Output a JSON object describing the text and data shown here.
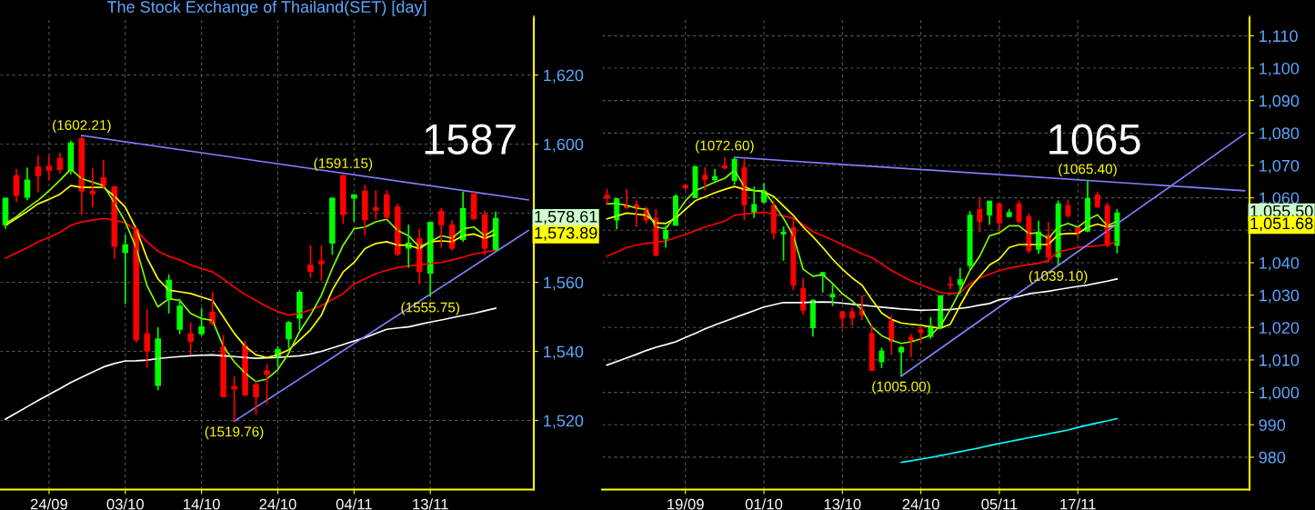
{
  "chart_data": [
    {
      "type": "candlestick",
      "title": "The Stock Exchange of Thailand(SET) [day]",
      "categories": [
        null,
        null,
        null,
        null,
        "24/09",
        null,
        null,
        null,
        null,
        null,
        null,
        "03/10",
        null,
        null,
        null,
        null,
        null,
        null,
        "14/10",
        null,
        null,
        null,
        null,
        null,
        null,
        "24/10",
        null,
        null,
        null,
        null,
        null,
        null,
        "04/11",
        null,
        null,
        null,
        null,
        null,
        null,
        "13/11",
        null,
        null,
        null,
        null,
        null,
        null,
        null,
        null,
        null
      ],
      "ohlc": [
        [
          1576.5,
          1584.5,
          1575.5,
          1584.5
        ],
        [
          1591,
          1592.75,
          1583.25,
          1585
        ],
        [
          1584.5,
          1593.25,
          1583.75,
          1589.75
        ],
        [
          1593.5,
          1596.75,
          1586,
          1590.75
        ],
        [
          1593.75,
          1596.5,
          1589.5,
          1592.25
        ],
        [
          1596,
          1597.5,
          1591.5,
          1592.5
        ],
        [
          1592.25,
          1601,
          1591.25,
          1600.5
        ],
        [
          1601.75,
          1602.21,
          1579.5,
          1586.25
        ],
        [
          1586.5,
          1593,
          1581.75,
          1585.5
        ],
        [
          1590.5,
          1595.5,
          1587,
          1588
        ],
        [
          1587.75,
          1588,
          1566.75,
          1570.25
        ],
        [
          1568.5,
          1573.75,
          1553.75,
          1571
        ],
        [
          1575.5,
          1576.25,
          1542.5,
          1543.25
        ],
        [
          1545.25,
          1552.25,
          1535.25,
          1540
        ],
        [
          1530,
          1547,
          1528.75,
          1543.75
        ],
        [
          1555.25,
          1562.25,
          1551,
          1560.75
        ],
        [
          1546.25,
          1555.25,
          1545,
          1553.25
        ],
        [
          1545.25,
          1548.5,
          1539,
          1542.75
        ],
        [
          1545,
          1552.5,
          1544.5,
          1547.25
        ],
        [
          1551.5,
          1557.25,
          1547.5,
          1548
        ],
        [
          1541.5,
          1544.75,
          1526.75,
          1526.75
        ],
        [
          1530,
          1532.75,
          1519.76,
          1529
        ],
        [
          1541.75,
          1543,
          1527,
          1527.25
        ],
        [
          1530.5,
          1531.5,
          1521.75,
          1526.75
        ],
        [
          1534.5,
          1536.25,
          1524.75,
          1533.25
        ],
        [
          1538.25,
          1541.5,
          1535.5,
          1540.75
        ],
        [
          1543.5,
          1548.75,
          1541,
          1548.5
        ],
        [
          1549.5,
          1557.75,
          1546.25,
          1557.25
        ],
        [
          1565.1,
          1570.75,
          1561.25,
          1563
        ],
        [
          1566.25,
          1570.75,
          1560.5,
          1565.25
        ],
        [
          1571.25,
          1584.5,
          1568,
          1584.5
        ],
        [
          1591,
          1591.15,
          1577,
          1579.5
        ],
        [
          1584.25,
          1585.5,
          1577.5,
          1585.5
        ],
        [
          1586.5,
          1588.25,
          1573.5,
          1578
        ],
        [
          1581.75,
          1586.75,
          1578.25,
          1580.75
        ],
        [
          1585.5,
          1586.75,
          1578.25,
          1578.75
        ],
        [
          1582,
          1582.75,
          1567.5,
          1568
        ],
        [
          1569.75,
          1576.75,
          1564.25,
          1571.5
        ],
        [
          1572.75,
          1575.5,
          1559.5,
          1563
        ],
        [
          1562.5,
          1577.5,
          1555.75,
          1577.5
        ],
        [
          1580.75,
          1581.5,
          1570,
          1576.5
        ],
        [
          1576.75,
          1578,
          1569.25,
          1569.75
        ],
        [
          1572.25,
          1586.25,
          1571.75,
          1581.5
        ],
        [
          1585.75,
          1586.25,
          1578,
          1578.25
        ],
        [
          1579.75,
          1580.75,
          1567.75,
          1569.75
        ],
        [
          1569.25,
          1580.5,
          1569.25,
          1578.61
        ],
        null,
        null,
        null
      ],
      "series": [
        {
          "type": "line",
          "color": "#ffffff",
          "values": [
            1520.4,
            1522.2,
            1524,
            1525.8,
            1527.5,
            1529.2,
            1531,
            1532.5,
            1534,
            1535.5,
            1536.5,
            1537.25,
            1537.3,
            1537.5,
            1537.9,
            1538.25,
            1538.5,
            1538.75,
            1538.9,
            1539,
            1538.75,
            1538.5,
            1538.25,
            1538,
            1538.1,
            1538.25,
            1538.5,
            1538.75,
            1539.25,
            1540,
            1541,
            1542,
            1543,
            1544,
            1545.2,
            1546.4,
            1546.8,
            1547.1,
            1547.8,
            1548.5,
            1549.1,
            1549.75,
            1550.4,
            1551,
            1551.75,
            1552.5,
            null,
            null,
            null
          ]
        },
        {
          "type": "line",
          "color": "#ff0000",
          "values": [
            1567,
            1568.5,
            1570,
            1571.75,
            1573,
            1574.5,
            1576.5,
            1577.5,
            1578,
            1578.5,
            1578,
            1577.25,
            1575,
            1571.75,
            1569,
            1567.5,
            1566.5,
            1565,
            1564,
            1563,
            1561,
            1558.6,
            1556.5,
            1554.75,
            1553,
            1551.5,
            1550.5,
            1551,
            1552,
            1553.25,
            1555,
            1556.75,
            1559.5,
            1561,
            1562.5,
            1563.5,
            1564.25,
            1564.75,
            1565,
            1565.5,
            1565.75,
            1566.5,
            1567.25,
            1568.25,
            1568.75,
            1569.25,
            null,
            null,
            null
          ]
        },
        {
          "type": "line",
          "color": "#ffff00",
          "values": [
            1576.5,
            1578.5,
            1580.5,
            1582.75,
            1584,
            1585.5,
            1588,
            1587.5,
            1587.5,
            1587.5,
            1585,
            1581.75,
            1575.5,
            1567,
            1561,
            1557.75,
            1557.25,
            1556.75,
            1555.75,
            1554.75,
            1550,
            1545.25,
            1541.5,
            1539,
            1538.25,
            1539,
            1540.5,
            1543.25,
            1546.25,
            1550.5,
            1557.75,
            1563,
            1565.75,
            1569.75,
            1571.25,
            1571.75,
            1570.75,
            1570.75,
            1569.75,
            1571.75,
            1572,
            1571.75,
            1573.5,
            1574,
            1572.75,
            1573.89,
            null,
            null,
            null
          ]
        },
        {
          "type": "line",
          "color": "#80ff00",
          "values": [
            1577,
            1579,
            1581.5,
            1583.75,
            1586.5,
            1589.5,
            1592.75,
            1590,
            1589,
            1588,
            1583,
            1577.5,
            1570,
            1559,
            1552.9,
            1555.25,
            1554.75,
            1551,
            1549.5,
            1549,
            1541.5,
            1537,
            1533.75,
            1531.25,
            1532,
            1534.75,
            1539.5,
            1545.75,
            1550.5,
            1556.25,
            1564,
            1570.75,
            1575.5,
            1576,
            1577.5,
            1578.25,
            1575,
            1573.5,
            1570.25,
            1571.75,
            1573.5,
            1572.75,
            1575.5,
            1576,
            1573.5,
            1575.5,
            null,
            null,
            null
          ]
        },
        {
          "type": "line",
          "color": "#8080ff",
          "values": [
            null,
            null,
            null,
            null,
            null,
            null,
            null,
            1602.5,
            null,
            null,
            null,
            null,
            null,
            null,
            null,
            null,
            null,
            null,
            null,
            null,
            null,
            null,
            null,
            null,
            null,
            null,
            null,
            null,
            null,
            null,
            null,
            null,
            null,
            null,
            null,
            null,
            null,
            null,
            null,
            null,
            null,
            null,
            null,
            null,
            null,
            null,
            null,
            null,
            1583.85
          ]
        },
        {
          "type": "line",
          "color": "#8080ff",
          "values": [
            null,
            null,
            null,
            null,
            null,
            null,
            null,
            null,
            null,
            null,
            null,
            null,
            null,
            null,
            null,
            null,
            null,
            null,
            null,
            null,
            null,
            1519.76,
            null,
            null,
            null,
            null,
            null,
            null,
            null,
            null,
            null,
            null,
            null,
            null,
            null,
            null,
            null,
            null,
            null,
            null,
            null,
            null,
            null,
            null,
            null,
            null,
            null,
            null,
            1575.0
          ]
        }
      ],
      "annotations": [
        {
          "text": "(1602.21)",
          "y": 1602.21
        },
        {
          "text": "(1591.15)",
          "y": 1591.15
        },
        {
          "text": "(1519.76)",
          "y": 1519.76
        },
        {
          "text": "(1555.75)",
          "y": 1555.75
        },
        "1587",
        "1,578.61",
        "1,573.89"
      ],
      "ylim": [
        1500,
        1637
      ],
      "yticks": [
        {
          "value": 1520,
          "label": "1,520"
        },
        {
          "value": 1540,
          "label": "1,540"
        },
        {
          "value": 1560,
          "label": "1,560"
        },
        {
          "value": 1580,
          "label": null
        },
        {
          "value": 1600,
          "label": "1,600"
        },
        {
          "value": 1620,
          "label": "1,620"
        }
      ],
      "grid": true
    },
    {
      "type": "candlestick",
      "categories": [
        null,
        null,
        null,
        null,
        null,
        null,
        null,
        null,
        "19/09",
        null,
        null,
        null,
        null,
        null,
        null,
        null,
        "01/10",
        null,
        null,
        null,
        null,
        null,
        null,
        null,
        "13/10",
        null,
        null,
        null,
        null,
        null,
        null,
        null,
        "24/10",
        null,
        null,
        null,
        null,
        null,
        null,
        null,
        "05/11",
        null,
        null,
        null,
        null,
        null,
        null,
        null,
        "17/11",
        null,
        null,
        null,
        null,
        null,
        null,
        null,
        null,
        null,
        null,
        null,
        null,
        null,
        null,
        null,
        null,
        null
      ],
      "ohlc": [
        [
          1061.0,
          1062.8,
          1058.1,
          1059.8
        ],
        [
          1053.0,
          1059.9,
          1050.3,
          1059.9
        ],
        [
          1057.7,
          1062.8,
          1056.5,
          1056.8
        ],
        [
          1058.0,
          1059.2,
          1051.0,
          1056.8
        ],
        [
          1056.8,
          1057.3,
          1052.1,
          1053.0
        ],
        [
          1053.9,
          1056.5,
          1041.9,
          1042.2
        ],
        [
          1047.2,
          1051.4,
          1044.7,
          1050.1
        ],
        [
          1051.4,
          1061.1,
          1051.4,
          1060.7
        ],
        [
          1064.0,
          1064.0,
          1062.5,
          1062.9
        ],
        [
          1059.9,
          1069.8,
          1059.9,
          1069.8
        ],
        [
          1067.1,
          1069.4,
          1062.2,
          1065.5
        ],
        [
          1065.5,
          1068.9,
          1065.0,
          1066.7
        ],
        [
          1070.0,
          1072.6,
          1068.8,
          1069.1
        ],
        [
          1065.2,
          1072.4,
          1064.0,
          1072.0
        ],
        [
          1069.4,
          1072.0,
          1053.2,
          1057.7
        ],
        [
          1055.5,
          1063.5,
          1053.8,
          1058.1
        ],
        [
          1058.6,
          1064.6,
          1058.3,
          1062.2
        ],
        [
          1057.7,
          1059.1,
          1047.2,
          1049.0
        ],
        [
          1048.7,
          1051.2,
          1040.6,
          1049.6
        ],
        [
          1051.0,
          1054.1,
          1031.5,
          1032.9
        ],
        [
          1032.2,
          1035.3,
          1023.9,
          1025.2
        ],
        [
          1019.8,
          1028.6,
          1017.2,
          1028.6
        ],
        [
          1035.9,
          1037.1,
          1030.8,
          1037.1
        ],
        [
          1029.3,
          1033.3,
          1026.6,
          1030.4
        ],
        [
          1025.0,
          1025.0,
          1019.6,
          1022.8
        ],
        [
          1025.0,
          1026.1,
          1020.5,
          1022.8
        ],
        [
          1025.5,
          1029.9,
          1022.3,
          1023.7
        ],
        [
          1018.3,
          1020.9,
          1006.6,
          1006.6
        ],
        [
          1009.3,
          1013.8,
          1007.5,
          1012.9
        ],
        [
          1022.1,
          1023.7,
          1011.6,
          1015.6
        ],
        [
          1012.3,
          1014.3,
          1005.0,
          1014.0
        ],
        [
          1017.1,
          1018.0,
          1010.8,
          1015.9
        ],
        [
          1019.4,
          1020.5,
          1015.1,
          1018.3
        ],
        [
          1017.1,
          1023.2,
          1016.5,
          1020.5
        ],
        [
          1020.2,
          1030.0,
          1019.4,
          1029.9
        ],
        [
          1033.5,
          1035.8,
          1031.7,
          1032.9
        ],
        [
          1033.1,
          1038.4,
          1030.4,
          1034.9
        ],
        [
          1039.0,
          1055.9,
          1037.9,
          1054.8
        ],
        [
          1056.5,
          1059.9,
          1049.4,
          1052.6
        ],
        [
          1054.6,
          1059.1,
          1051.7,
          1059.1
        ],
        [
          1058.3,
          1058.3,
          1049.6,
          1052.1
        ],
        [
          1054.1,
          1056.5,
          1054.1,
          1055.6
        ],
        [
          1058.3,
          1059.2,
          1052.1,
          1052.6
        ],
        [
          1054.3,
          1055.2,
          1042.9,
          1043.6
        ],
        [
          1044.0,
          1053.0,
          1042.7,
          1049.6
        ],
        [
          1048.7,
          1052.6,
          1040.0,
          1041.6
        ],
        [
          1041.6,
          1059.2,
          1039.1,
          1058.3
        ],
        [
          1057.7,
          1059.5,
          1053.9,
          1054.4
        ],
        [
          1051.0,
          1051.0,
          1047.6,
          1049.0
        ],
        [
          1049.6,
          1065.4,
          1049.4,
          1059.9
        ],
        [
          1061.0,
          1061.9,
          1056.8,
          1057.1
        ],
        [
          1057.7,
          1058.6,
          1044.7,
          1045.2
        ],
        [
          1045.2,
          1056.5,
          1042.9,
          1055.5
        ],
        null,
        null,
        null,
        null,
        null,
        null,
        null,
        null,
        null,
        null,
        null,
        null,
        null
      ],
      "series": [
        {
          "type": "line",
          "color": "#ffffff",
          "values": [
            1008.4,
            1009.5,
            1010.6,
            1011.7,
            1012.9,
            1013.9,
            1014.7,
            1015.6,
            1016.9,
            1018.2,
            1019.6,
            1020.8,
            1021.9,
            1023.0,
            1024.1,
            1025.2,
            1026.3,
            1027.0,
            1027.7,
            1027.7,
            1027.7,
            1027.8,
            1027.9,
            1027.8,
            1027.5,
            1027.2,
            1026.9,
            1026.6,
            1026.3,
            1026.0,
            1025.7,
            1025.5,
            1025.3,
            1025.4,
            1025.5,
            1025.5,
            1025.9,
            1026.3,
            1026.9,
            1027.4,
            1028.6,
            1029.0,
            1029.6,
            1030.4,
            1030.8,
            1031.2,
            1031.7,
            1032.2,
            1032.7,
            1033.1,
            1033.7,
            1034.3,
            1035.0,
            null,
            null,
            null,
            null,
            null,
            null,
            null,
            null,
            null,
            null,
            null,
            null,
            null
          ]
        },
        {
          "type": "line",
          "color": "#ff0000",
          "values": [
            1042.0,
            1043.3,
            1044.7,
            1045.4,
            1046.0,
            1046.3,
            1046.7,
            1047.7,
            1048.7,
            1049.9,
            1051.0,
            1051.9,
            1052.8,
            1054.6,
            1055.0,
            1055.3,
            1055.6,
            1055.0,
            1054.4,
            1053.7,
            1051.7,
            1049.6,
            1048.3,
            1047.0,
            1045.6,
            1044.2,
            1042.7,
            1041.6,
            1039.6,
            1037.6,
            1036.0,
            1034.4,
            1033.2,
            1032.0,
            1030.8,
            1030.4,
            1030.8,
            1033.5,
            1035.3,
            1036.5,
            1037.6,
            1038.3,
            1038.9,
            1039.4,
            1039.8,
            1040.7,
            1043.4,
            1044.0,
            1044.7,
            1045.0,
            1045.2,
            1045.6,
            1046.5,
            null,
            null,
            null,
            null,
            null,
            null,
            null,
            null,
            null,
            null,
            null,
            null,
            null
          ]
        },
        {
          "type": "line",
          "color": "#ffff00",
          "values": [
            1053.5,
            1054.4,
            1055.3,
            1055.0,
            1054.6,
            1052.3,
            1052.1,
            1053.7,
            1056.4,
            1059.1,
            1060.3,
            1061.6,
            1062.6,
            1063.5,
            1062.6,
            1062.2,
            1061.9,
            1060.4,
            1057.5,
            1054.6,
            1051.0,
            1048.0,
            1044.7,
            1041.1,
            1038.0,
            1035.3,
            1033.1,
            1028.6,
            1024.5,
            1022.5,
            1021.4,
            1021.0,
            1020.7,
            1020.2,
            1019.8,
            1021.0,
            1026.8,
            1032.2,
            1035.8,
            1039.3,
            1041.1,
            1044.7,
            1045.6,
            1045.6,
            1045.6,
            1045.6,
            1048.7,
            1049.0,
            1049.0,
            1051.0,
            1051.9,
            1051.0,
            1051.68,
            null,
            null,
            null,
            null,
            null,
            null,
            null,
            null,
            null,
            null,
            null,
            null,
            null
          ]
        },
        {
          "type": "line",
          "color": "#80ff00",
          "values": [
            1058.1,
            1058.3,
            1057.7,
            1056.8,
            1056.5,
            1051.0,
            1050.5,
            1054.6,
            1059.1,
            1062.2,
            1063.5,
            1064.9,
            1066.0,
            1068.5,
            1063.5,
            1062.2,
            1062.2,
            1058.1,
            1053.7,
            1048.3,
            1038.0,
            1035.8,
            1036.3,
            1033.6,
            1030.4,
            1028.2,
            1025.5,
            1020.2,
            1017.5,
            1016.1,
            1015.1,
            1015.6,
            1016.5,
            1017.7,
            1020.5,
            1025.5,
            1031.3,
            1037.6,
            1042.0,
            1048.3,
            1049.2,
            1051.4,
            1051.4,
            1049.0,
            1049.2,
            1047.4,
            1051.0,
            1052.1,
            1051.0,
            1053.2,
            1054.8,
            1051.4,
            1052.8,
            null,
            null,
            null,
            null,
            null,
            null,
            null,
            null,
            null,
            null,
            null,
            null,
            null
          ]
        },
        {
          "type": "line",
          "color": "#00ffff",
          "values": [
            null,
            null,
            null,
            null,
            null,
            null,
            null,
            null,
            null,
            null,
            null,
            null,
            null,
            null,
            null,
            null,
            null,
            null,
            null,
            null,
            null,
            null,
            null,
            null,
            null,
            null,
            null,
            null,
            null,
            null,
            978.4,
            978.9,
            979.4,
            979.9,
            980.5,
            981.1,
            981.7,
            982.3,
            982.9,
            983.6,
            984.2,
            984.8,
            985.4,
            986.0,
            986.6,
            987.2,
            987.8,
            988.4,
            989.2,
            989.9,
            990.6,
            991.2,
            991.9,
            null,
            null,
            null,
            null,
            null,
            null,
            null,
            null,
            null,
            null,
            null,
            null,
            null
          ]
        },
        {
          "type": "line",
          "color": "#8080ff",
          "values": [
            null,
            null,
            null,
            null,
            null,
            null,
            null,
            null,
            null,
            null,
            null,
            null,
            null,
            1072.5,
            null,
            null,
            null,
            null,
            null,
            null,
            null,
            null,
            null,
            null,
            null,
            null,
            null,
            null,
            null,
            null,
            null,
            null,
            null,
            null,
            null,
            null,
            null,
            null,
            null,
            null,
            null,
            null,
            null,
            null,
            null,
            null,
            null,
            null,
            null,
            null,
            null,
            null,
            null,
            null,
            null,
            null,
            null,
            null,
            null,
            null,
            null,
            null,
            null,
            null,
            null,
            1062.2
          ]
        },
        {
          "type": "line",
          "color": "#8080ff",
          "values": [
            null,
            null,
            null,
            null,
            null,
            null,
            null,
            null,
            null,
            null,
            null,
            null,
            null,
            null,
            null,
            null,
            null,
            null,
            null,
            null,
            null,
            null,
            null,
            null,
            null,
            null,
            null,
            null,
            null,
            null,
            1005.0,
            null,
            null,
            null,
            null,
            null,
            null,
            null,
            null,
            null,
            null,
            null,
            null,
            null,
            null,
            null,
            null,
            null,
            null,
            null,
            null,
            null,
            null,
            null,
            null,
            null,
            null,
            null,
            null,
            null,
            null,
            null,
            null,
            null,
            null,
            1079.7
          ]
        }
      ],
      "annotations": [
        {
          "text": "(1072.60)",
          "y": 1072.6
        },
        {
          "text": "(1065.40)",
          "y": 1065.4
        },
        {
          "text": "(1005.00)",
          "y": 1005.0
        },
        {
          "text": "(1039.10)",
          "y": 1039.1
        },
        "1065",
        "1,055.50",
        "1,051.68"
      ],
      "ylim": [
        970,
        1116
      ],
      "yticks": [
        980,
        990,
        {
          "value": 1000,
          "label": "1,000"
        },
        {
          "value": 1010,
          "label": "1,010"
        },
        {
          "value": 1020,
          "label": "1,020"
        },
        {
          "value": 1030,
          "label": "1,030"
        },
        {
          "value": 1040,
          "label": "1,040"
        },
        {
          "value": 1050,
          "label": null
        },
        {
          "value": 1060,
          "label": "1,060"
        },
        {
          "value": 1070,
          "label": "1,070"
        },
        {
          "value": 1080,
          "label": "1,080"
        },
        {
          "value": 1090,
          "label": "1,090"
        },
        {
          "value": 1100,
          "label": "1,100"
        },
        {
          "value": 1110,
          "label": "1,110"
        }
      ],
      "grid": true
    }
  ]
}
